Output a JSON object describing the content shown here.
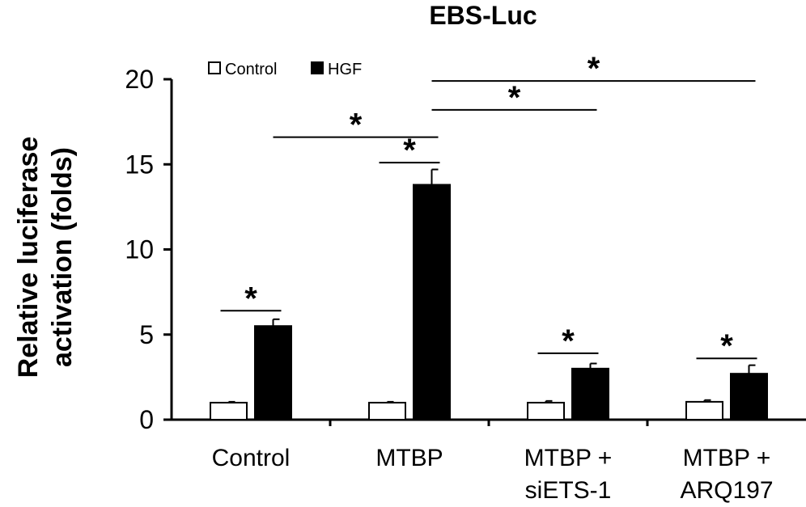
{
  "chart_data": {
    "type": "bar",
    "title": "EBS-Luc",
    "ylabel_lines": [
      "Relative luciferase",
      "activation (folds)"
    ],
    "xlabel": "",
    "ylim": [
      0,
      20
    ],
    "yticks": [
      0,
      5,
      10,
      15,
      20
    ],
    "categories": [
      [
        "Control"
      ],
      [
        "MTBP"
      ],
      [
        "MTBP +",
        "siETS-1"
      ],
      [
        "MTBP +",
        "ARQ197"
      ]
    ],
    "series": [
      {
        "name": "Control",
        "color": "#ffffff",
        "values": [
          1.0,
          1.0,
          1.0,
          1.05
        ],
        "errors": [
          0.05,
          0.05,
          0.1,
          0.1
        ]
      },
      {
        "name": "HGF",
        "color": "#000000",
        "values": [
          5.5,
          13.8,
          3.0,
          2.7
        ],
        "errors": [
          0.4,
          0.9,
          0.3,
          0.5
        ]
      }
    ],
    "legend_position": "top-left",
    "grid": false,
    "significance": [
      {
        "label": "*",
        "from": {
          "category": 0,
          "series": 0
        },
        "to": {
          "category": 0,
          "series": 1
        },
        "y": 6.4
      },
      {
        "label": "*",
        "from": {
          "category": 1,
          "series": 0
        },
        "to": {
          "category": 1,
          "series": 1
        },
        "y": 15.1
      },
      {
        "label": "*",
        "from": {
          "category": 2,
          "series": 0
        },
        "to": {
          "category": 2,
          "series": 1
        },
        "y": 3.9
      },
      {
        "label": "*",
        "from": {
          "category": 3,
          "series": 0
        },
        "to": {
          "category": 3,
          "series": 1
        },
        "y": 3.6
      },
      {
        "label": "*",
        "from": {
          "category": 0,
          "series": 1
        },
        "to": {
          "category": 1,
          "series": 1
        },
        "y": 16.6
      },
      {
        "label": "*",
        "from": {
          "category": 1,
          "series": 1
        },
        "to": {
          "category": 2,
          "series": 1
        },
        "y": 18.2
      },
      {
        "label": "*",
        "from": {
          "category": 1,
          "series": 1
        },
        "to": {
          "category": 3,
          "series": 1
        },
        "y": 19.9
      }
    ]
  }
}
